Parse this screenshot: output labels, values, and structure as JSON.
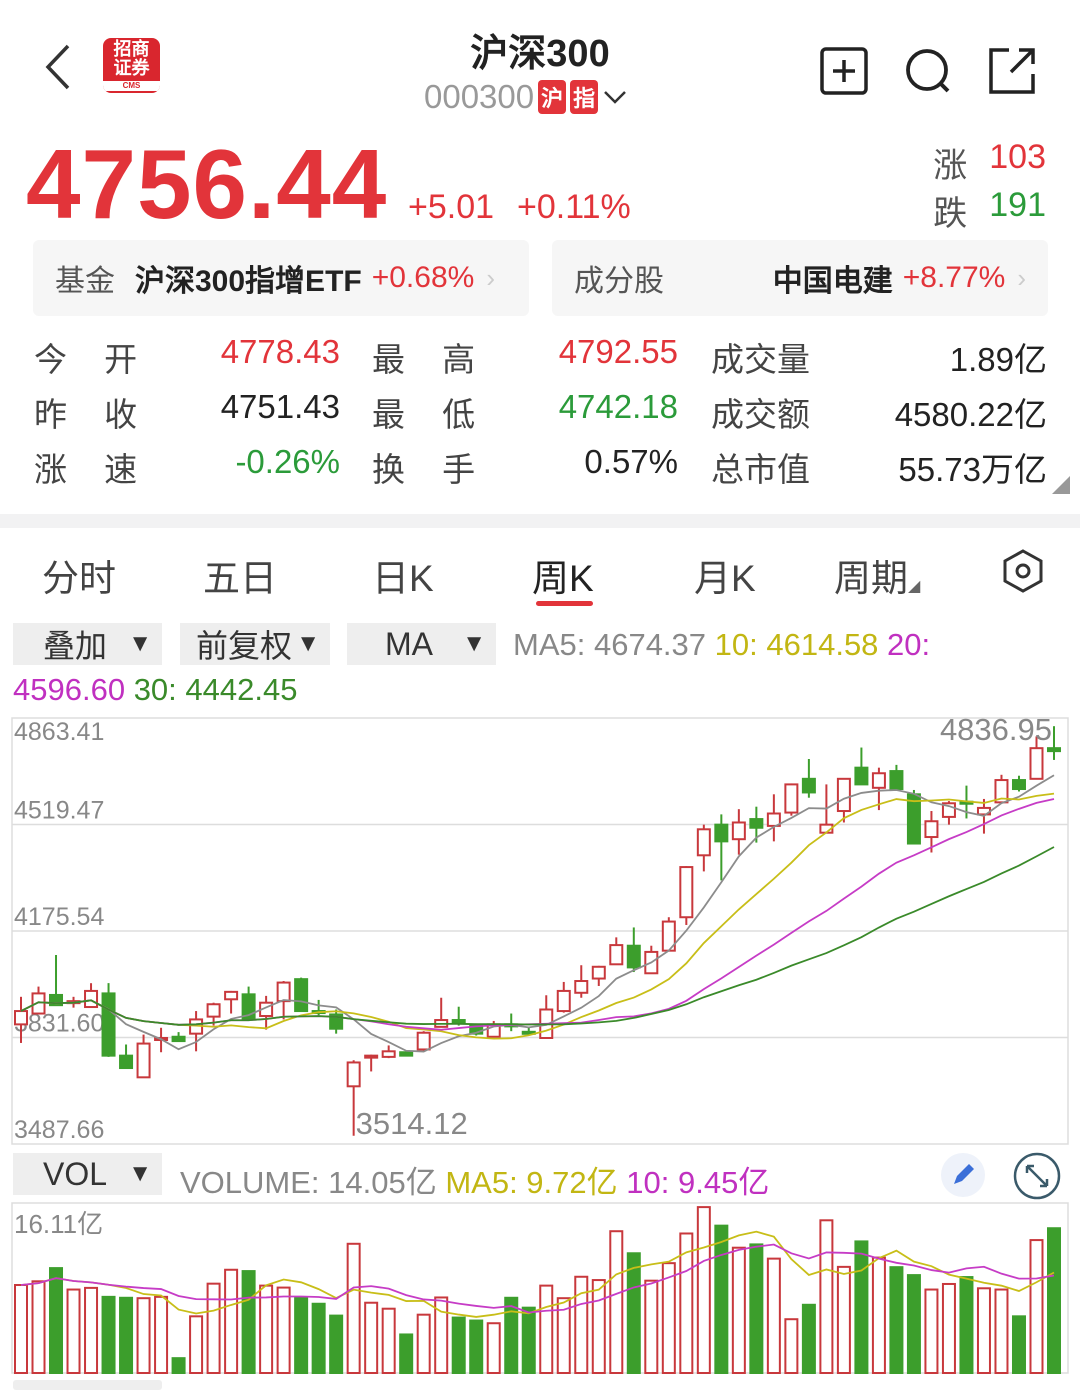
{
  "header": {
    "title": "沪深300",
    "code": "000300",
    "badge_market": "沪",
    "badge_type": "指",
    "logo_text": "招商证券",
    "logo_sub": "CMS",
    "icons": [
      "back-icon",
      "add-watchlist-icon",
      "search-icon",
      "share-icon",
      "chevron-down-icon"
    ]
  },
  "quote": {
    "price": "4756.44",
    "change": "+5.01",
    "change_pct": "+0.11%",
    "up_label": "涨",
    "up_count": "103",
    "down_label": "跌",
    "down_count": "191"
  },
  "cards": [
    {
      "label": "基金",
      "name": "沪深300指增ETF",
      "value": "+0.68%"
    },
    {
      "label": "成分股",
      "name": "中国电建",
      "value": "+8.77%"
    }
  ],
  "stats": [
    [
      {
        "label": "今 开",
        "value": "4778.43",
        "color": "red"
      },
      {
        "label": "最 高",
        "value": "4792.55",
        "color": "red"
      },
      {
        "label": "成交量",
        "value": "1.89亿",
        "color": ""
      }
    ],
    [
      {
        "label": "昨 收",
        "value": "4751.43",
        "color": ""
      },
      {
        "label": "最 低",
        "value": "4742.18",
        "color": "green"
      },
      {
        "label": "成交额",
        "value": "4580.22亿",
        "color": ""
      }
    ],
    [
      {
        "label": "涨 速",
        "value": "-0.26%",
        "color": "green"
      },
      {
        "label": "换 手",
        "value": "0.57%",
        "color": ""
      },
      {
        "label": "总市值",
        "value": "55.73万亿",
        "color": ""
      }
    ]
  ],
  "tabs": [
    {
      "label": "分时"
    },
    {
      "label": "五日"
    },
    {
      "label": "日K"
    },
    {
      "label": "周K",
      "active": true
    },
    {
      "label": "月K"
    },
    {
      "label": "周期"
    }
  ],
  "toolbar": {
    "overlay": "叠加",
    "adjust": "前复权",
    "indicator": "MA",
    "arrow": "▼",
    "ma5": "MA5: 4674.37",
    "ma10": "10: 4614.58",
    "ma20": "20:",
    "ma20_val": "4596.60",
    "ma30": "30: 4442.45"
  },
  "vol_toolbar": {
    "indicator": "VOL",
    "arrow": "▼",
    "volume": "VOLUME: 14.05亿",
    "ma5": "MA5: 9.72亿",
    "ma10": "10: 9.45亿"
  },
  "colors": {
    "up": "#c8383c",
    "down": "#3c9e2c",
    "ma5": "#8c8c8c",
    "ma10": "#c8be18",
    "ma20": "#c63cc6",
    "ma30": "#3a8a2a",
    "accent": "#e2343a"
  },
  "chart_data": [
    {
      "type": "candlestick",
      "period": "weekly",
      "y_ticks": [
        "4863.41",
        "4519.47",
        "4175.54",
        "3831.60",
        "3487.66"
      ],
      "ylim": [
        3487.66,
        4863.41
      ],
      "grid": true,
      "high_label": "4836.95",
      "low_label": "3514.12",
      "ma_periods": [
        5,
        10,
        20,
        30
      ],
      "ohlc": [
        [
          3874,
          3963,
          3814,
          3917
        ],
        [
          3909,
          3996,
          3909,
          3974
        ],
        [
          3969,
          4098,
          3936,
          3936
        ],
        [
          3944,
          3963,
          3928,
          3949
        ],
        [
          3930,
          4007,
          3930,
          3982
        ],
        [
          3974,
          4007,
          3769,
          3773
        ],
        [
          3773,
          3809,
          3733,
          3733
        ],
        [
          3703,
          3841,
          3703,
          3812
        ],
        [
          3825,
          3863,
          3784,
          3830
        ],
        [
          3834,
          3849,
          3820,
          3820
        ],
        [
          3844,
          3917,
          3787,
          3890
        ],
        [
          3899,
          3944,
          3870,
          3939
        ],
        [
          3955,
          3982,
          3909,
          3979
        ],
        [
          3971,
          3996,
          3890,
          3892
        ],
        [
          3901,
          3966,
          3857,
          3944
        ],
        [
          3949,
          4014,
          3890,
          4009
        ],
        [
          4020,
          4025,
          3917,
          3917
        ],
        [
          3917,
          3953,
          3903,
          3914
        ],
        [
          3906,
          3922,
          3844,
          3860
        ],
        [
          3674,
          3758,
          3514.12,
          3751
        ],
        [
          3769,
          3776,
          3722,
          3773
        ],
        [
          3769,
          3806,
          3765,
          3787
        ],
        [
          3784,
          3787,
          3771,
          3773
        ],
        [
          3793,
          3852,
          3787,
          3847
        ],
        [
          3866,
          3960,
          3866,
          3888
        ],
        [
          3888,
          3931,
          3870,
          3883
        ],
        [
          3870,
          3877,
          3838,
          3844
        ],
        [
          3834,
          3885,
          3834,
          3874
        ],
        [
          3874,
          3909,
          3852,
          3872
        ],
        [
          3850,
          3863,
          3841,
          3849
        ],
        [
          3830,
          3968,
          3830,
          3922
        ],
        [
          3917,
          4011,
          3912,
          3982
        ],
        [
          3976,
          4065,
          3960,
          4014
        ],
        [
          4022,
          4063,
          3998,
          4060
        ],
        [
          4068,
          4155,
          4068,
          4130
        ],
        [
          4128,
          4187,
          4043,
          4058
        ],
        [
          4039,
          4128,
          4039,
          4108
        ],
        [
          4112,
          4220,
          4112,
          4206
        ],
        [
          4220,
          4385,
          4195,
          4382
        ],
        [
          4420,
          4519,
          4368,
          4504
        ],
        [
          4519,
          4552,
          4339,
          4465
        ],
        [
          4472,
          4569,
          4422,
          4526
        ],
        [
          4537,
          4577,
          4461,
          4509
        ],
        [
          4515,
          4617,
          4465,
          4555
        ],
        [
          4558,
          4652,
          4548,
          4649
        ],
        [
          4667,
          4731,
          4606,
          4623
        ],
        [
          4493,
          4649,
          4493,
          4519
        ],
        [
          4563,
          4669,
          4526,
          4667
        ],
        [
          4703,
          4768,
          4649,
          4649
        ],
        [
          4638,
          4703,
          4566,
          4685
        ],
        [
          4692,
          4712,
          4631,
          4634
        ],
        [
          4617,
          4631,
          4458,
          4458
        ],
        [
          4479,
          4563,
          4429,
          4530
        ],
        [
          4544,
          4595,
          4519,
          4588
        ],
        [
          4593,
          4645,
          4539,
          4588
        ],
        [
          4552,
          4602,
          4490,
          4573
        ],
        [
          4591,
          4680,
          4591,
          4663
        ],
        [
          4663,
          4677,
          4626,
          4634
        ],
        [
          4667,
          4804,
          4667,
          4766
        ],
        [
          4766,
          4836.95,
          4728,
          4756.44
        ]
      ]
    },
    {
      "type": "bar",
      "unit": "亿",
      "y_max_label": "16.11亿",
      "ylim": [
        0,
        16.11
      ],
      "ma_periods": [
        5,
        10
      ],
      "values": [
        8.54,
        8.9,
        10.18,
        8.1,
        8.26,
        7.39,
        7.3,
        7.26,
        7.39,
        1.44,
        5.5,
        8.67,
        10.02,
        9.89,
        8.48,
        8.29,
        7.33,
        6.72,
        5.57,
        12.54,
        6.82,
        6.24,
        3.74,
        5.66,
        7.33,
        5.38,
        5.09,
        4.83,
        7.3,
        6.34,
        8.48,
        7.26,
        9.34,
        9.02,
        13.76,
        11.62,
        8.96,
        10.66,
        13.54,
        16.1,
        14.3,
        12.16,
        12.48,
        11.1,
        5.22,
        6.62,
        14.82,
        10.3,
        12.77,
        11.2,
        10.27,
        9.5,
        8.1,
        8.64,
        9.31,
        8.22,
        8.1,
        5.5,
        12.9,
        14.05
      ]
    }
  ]
}
